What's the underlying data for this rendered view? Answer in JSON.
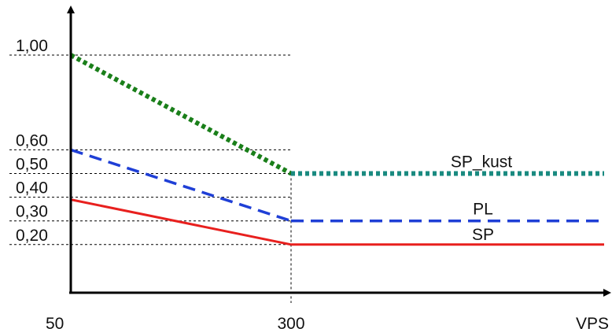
{
  "chart_data": {
    "type": "line",
    "xlabel": "VPS",
    "ylabel": "",
    "title": "",
    "x_ticks": [
      {
        "value": 50,
        "label": "50"
      },
      {
        "value": 300,
        "label": "300"
      }
    ],
    "y_ticks": [
      {
        "value": 1.0,
        "label": "1,00"
      },
      {
        "value": 0.6,
        "label": "0,60"
      },
      {
        "value": 0.5,
        "label": "0,50"
      },
      {
        "value": 0.4,
        "label": "0,40"
      },
      {
        "value": 0.3,
        "label": "0,30"
      },
      {
        "value": 0.2,
        "label": "0,20"
      }
    ],
    "series": [
      {
        "name": "SP_kust",
        "color": "#1a7f1a",
        "color_flat": "#1a8a80",
        "style": "dotted",
        "points": [
          [
            50,
            1.0
          ],
          [
            300,
            0.5
          ],
          [
            600,
            0.5
          ]
        ]
      },
      {
        "name": "PL",
        "color": "#1f3fd6",
        "style": "dashed",
        "points": [
          [
            50,
            0.6
          ],
          [
            300,
            0.3
          ],
          [
            600,
            0.3
          ]
        ]
      },
      {
        "name": "SP",
        "color": "#e8201e",
        "style": "solid",
        "points": [
          [
            50,
            0.39
          ],
          [
            300,
            0.2
          ],
          [
            600,
            0.2
          ]
        ]
      }
    ],
    "axis_color": "#000000",
    "guide_color": "#000000",
    "grid": false
  }
}
